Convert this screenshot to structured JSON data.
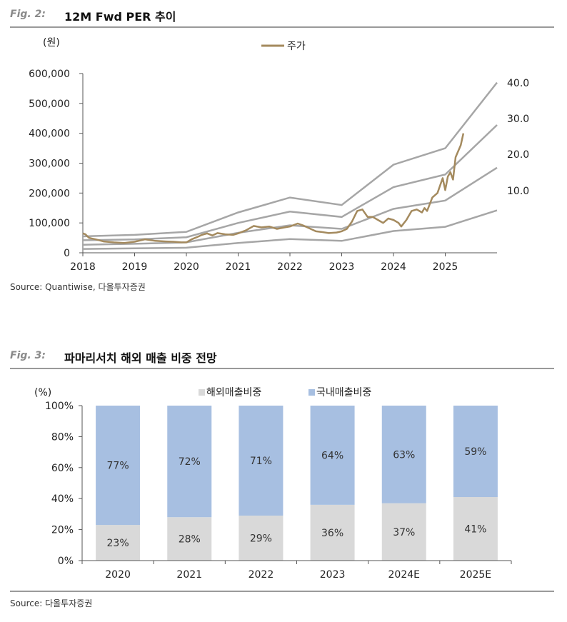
{
  "fig2": {
    "number": "Fig. 2:",
    "title": "12M Fwd PER 추이",
    "source": "Source: Quantiwise,  다올투자증권",
    "chart_data": {
      "type": "line",
      "title": "",
      "ylabel": "(원)",
      "ylim": [
        0,
        600000
      ],
      "y_ticks": [
        "600,000",
        "500,000",
        "400,000",
        "300,000",
        "200,000",
        "100,000",
        "0"
      ],
      "y_tick_values": [
        600000,
        500000,
        400000,
        300000,
        200000,
        100000,
        0
      ],
      "x_ticks": [
        "2018",
        "2019",
        "2020",
        "2021",
        "2022",
        "2023",
        "2024",
        "2025"
      ],
      "x_tick_values": [
        2018,
        2019,
        2020,
        2021,
        2022,
        2023,
        2024,
        2025
      ],
      "xlim": [
        2018,
        2026
      ],
      "legend": {
        "label": "주가",
        "position": "top-center"
      },
      "per_band_labels": [
        "40.0",
        "30.0",
        "20.0",
        "10.0"
      ],
      "price_color": "#a48a5e",
      "band_color": "#a6a6a6",
      "bands": [
        {
          "name": "40.0",
          "x": [
            2018,
            2019,
            2020,
            2021,
            2022,
            2023,
            2024,
            2025,
            2026
          ],
          "y": [
            55000,
            60000,
            70000,
            135000,
            185000,
            160000,
            295000,
            350000,
            570000
          ]
        },
        {
          "name": "30.0",
          "x": [
            2018,
            2019,
            2020,
            2021,
            2022,
            2023,
            2024,
            2025,
            2026
          ],
          "y": [
            42000,
            45000,
            52000,
            100000,
            138000,
            120000,
            220000,
            262000,
            428000
          ]
        },
        {
          "name": "20.0",
          "x": [
            2018,
            2019,
            2020,
            2021,
            2022,
            2023,
            2024,
            2025,
            2026
          ],
          "y": [
            27000,
            30000,
            35000,
            67000,
            92000,
            80000,
            147000,
            175000,
            285000
          ]
        },
        {
          "name": "10.0",
          "x": [
            2018,
            2019,
            2020,
            2021,
            2022,
            2023,
            2024,
            2025,
            2026
          ],
          "y": [
            13000,
            15000,
            17000,
            33000,
            46000,
            40000,
            73000,
            87000,
            142000
          ]
        }
      ],
      "series": [
        {
          "name": "주가",
          "x": [
            2018.0,
            2018.05,
            2018.12,
            2018.25,
            2018.4,
            2018.6,
            2018.8,
            2019.0,
            2019.2,
            2019.4,
            2019.6,
            2019.75,
            2019.9,
            2020.0,
            2020.1,
            2020.2,
            2020.3,
            2020.4,
            2020.5,
            2020.6,
            2020.75,
            2020.9,
            2021.0,
            2021.15,
            2021.3,
            2021.45,
            2021.6,
            2021.75,
            2021.9,
            2022.0,
            2022.15,
            2022.25,
            2022.4,
            2022.5,
            2022.6,
            2022.75,
            2022.9,
            2023.0,
            2023.1,
            2023.2,
            2023.3,
            2023.4,
            2023.5,
            2023.6,
            2023.7,
            2023.8,
            2023.9,
            2024.0,
            2024.1,
            2024.15,
            2024.25,
            2024.35,
            2024.45,
            2024.55,
            2024.6,
            2024.65,
            2024.75,
            2024.85,
            2024.95,
            2025.0,
            2025.05,
            2025.1,
            2025.15,
            2025.2,
            2025.25,
            2025.3,
            2025.35
          ],
          "y": [
            65000,
            62000,
            50000,
            45000,
            38000,
            35000,
            33000,
            37000,
            45000,
            40000,
            38000,
            37000,
            35000,
            35000,
            45000,
            52000,
            60000,
            65000,
            58000,
            66000,
            62000,
            60000,
            65000,
            75000,
            90000,
            85000,
            88000,
            80000,
            85000,
            88000,
            98000,
            92000,
            80000,
            72000,
            70000,
            66000,
            68000,
            72000,
            80000,
            105000,
            140000,
            145000,
            120000,
            120000,
            110000,
            100000,
            115000,
            110000,
            100000,
            88000,
            110000,
            140000,
            145000,
            135000,
            150000,
            140000,
            185000,
            200000,
            250000,
            210000,
            255000,
            270000,
            245000,
            320000,
            340000,
            360000,
            400000
          ]
        }
      ]
    }
  },
  "fig3": {
    "number": "Fig. 3:",
    "title": "파마리서치 해외 매출 비중 전망",
    "source": "Source:  다올투자증권",
    "chart_data": {
      "type": "bar",
      "stacked": true,
      "title": "",
      "ylabel": "(%)",
      "ylim": [
        0,
        100
      ],
      "y_ticks": [
        "100%",
        "80%",
        "60%",
        "40%",
        "20%",
        "0%"
      ],
      "y_tick_values": [
        100,
        80,
        60,
        40,
        20,
        0
      ],
      "categories": [
        "2020",
        "2021",
        "2022",
        "2023",
        "2024E",
        "2025E"
      ],
      "legend_position": "top-center",
      "series": [
        {
          "name": "해외매출비중",
          "color": "#d9d9d9",
          "values": [
            23,
            28,
            29,
            36,
            37,
            41
          ],
          "labels": [
            "23%",
            "28%",
            "29%",
            "36%",
            "37%",
            "41%"
          ]
        },
        {
          "name": "국내매출비중",
          "color": "#a7bfe1",
          "values": [
            77,
            72,
            71,
            64,
            63,
            59
          ],
          "labels": [
            "77%",
            "72%",
            "71%",
            "64%",
            "63%",
            "59%"
          ]
        }
      ]
    }
  }
}
